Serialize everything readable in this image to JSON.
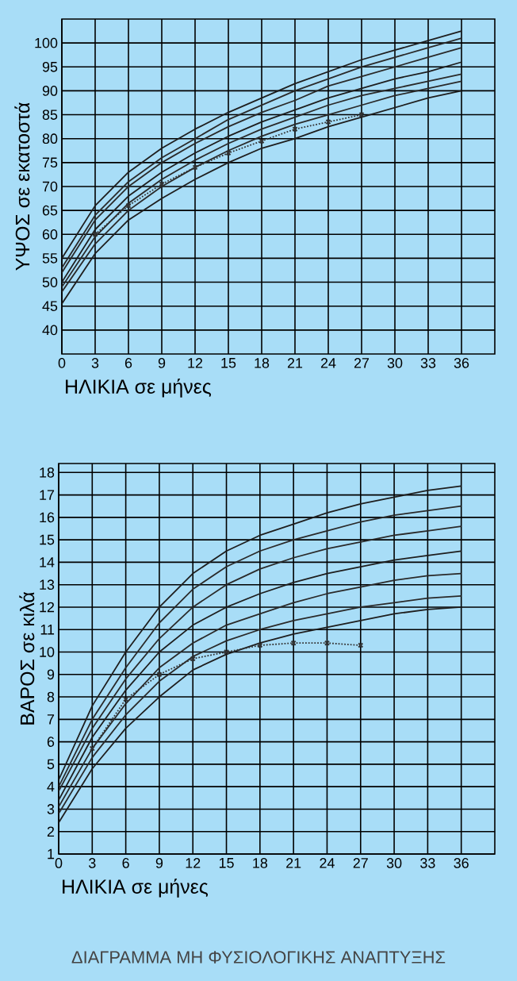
{
  "chart_data": [
    {
      "type": "line",
      "xlabel": "ΗΛΙΚΙΑ σε μήνες",
      "ylabel": "ΥΨΟΣ σε εκατοστά",
      "x": [
        0,
        3,
        6,
        9,
        12,
        15,
        18,
        21,
        24,
        27,
        30,
        33,
        36
      ],
      "xlim": [
        0,
        39
      ],
      "xticks": [
        0,
        3,
        6,
        9,
        12,
        15,
        18,
        21,
        24,
        27,
        30,
        33,
        36
      ],
      "ylim": [
        35,
        105
      ],
      "yticks": [
        40,
        45,
        50,
        55,
        60,
        65,
        70,
        75,
        80,
        85,
        90,
        95,
        100
      ],
      "grid": true,
      "series": [
        {
          "color": "#1e1e1e",
          "values": [
            55,
            66,
            73,
            78,
            82,
            85.5,
            88.5,
            91.5,
            94,
            96.5,
            98.5,
            100.5,
            102.5
          ]
        },
        {
          "color": "#2a2a2a",
          "values": [
            53,
            64,
            71,
            76,
            80,
            84,
            87,
            90,
            92.5,
            95,
            97,
            99,
            101
          ]
        },
        {
          "color": "#2a2a2a",
          "values": [
            52,
            63,
            70,
            75,
            79,
            82.5,
            85.5,
            88,
            91,
            93,
            95,
            97,
            99
          ]
        },
        {
          "color": "#1e1e1e",
          "values": [
            50,
            61,
            68,
            73,
            77,
            80.5,
            83.5,
            86,
            88.5,
            90.5,
            92.5,
            94,
            96
          ]
        },
        {
          "color": "#2a2a2a",
          "values": [
            49,
            59.5,
            66.5,
            71.5,
            75.5,
            79,
            82,
            84.5,
            87,
            89,
            90.5,
            92,
            93.5
          ]
        },
        {
          "color": "#2a2a2a",
          "values": [
            48,
            58,
            65,
            70,
            74,
            77.5,
            80.5,
            83,
            85,
            87,
            89,
            90.5,
            92
          ]
        },
        {
          "color": "#1e1e1e",
          "values": [
            45.5,
            56,
            63,
            67.5,
            71.5,
            75,
            78,
            80,
            82.5,
            84.5,
            86.5,
            88.5,
            90
          ]
        },
        {
          "color": "#333333",
          "x": [
            3,
            6,
            9,
            12,
            15,
            18,
            21,
            24,
            27
          ],
          "values": [
            60,
            66,
            70.5,
            74,
            77,
            79.5,
            82,
            83.5,
            85
          ],
          "line_style": "dotted",
          "marker": "cross"
        }
      ]
    },
    {
      "type": "line",
      "xlabel": "ΗΛΙΚΙΑ σε μήνες",
      "ylabel": "ΒΑΡΟΣ σε κιλά",
      "x": [
        0,
        3,
        6,
        9,
        12,
        15,
        18,
        21,
        24,
        27,
        30,
        33,
        36
      ],
      "xlim": [
        0,
        39
      ],
      "xticks": [
        0,
        3,
        6,
        9,
        12,
        15,
        18,
        21,
        24,
        27,
        30,
        33,
        36
      ],
      "ylim": [
        1,
        18.4
      ],
      "yticks": [
        1,
        2,
        3,
        4,
        5,
        6,
        7,
        8,
        9,
        10,
        11,
        12,
        13,
        14,
        15,
        16,
        17,
        18
      ],
      "grid": true,
      "annotations": [
        "ΔΙΑΓΡΑΜΜΑ ΜΗ ΦΥΣΙΟΛΟΓΙΚΗΣ ΑΝΑΠΤΥΞΗΣ"
      ],
      "series": [
        {
          "color": "#1e1e1e",
          "values": [
            4.3,
            7.6,
            10,
            12,
            13.5,
            14.5,
            15.2,
            15.7,
            16.2,
            16.6,
            16.9,
            17.2,
            17.4
          ]
        },
        {
          "color": "#2a2a2a",
          "values": [
            4,
            7,
            9.3,
            11.3,
            12.8,
            13.8,
            14.5,
            15,
            15.4,
            15.8,
            16.1,
            16.3,
            16.5
          ]
        },
        {
          "color": "#2a2a2a",
          "values": [
            3.8,
            6.6,
            8.8,
            10.6,
            12,
            13,
            13.7,
            14.2,
            14.6,
            14.9,
            15.2,
            15.4,
            15.6
          ]
        },
        {
          "color": "#1e1e1e",
          "values": [
            3.4,
            6.2,
            8.3,
            10,
            11.2,
            12,
            12.6,
            13.1,
            13.5,
            13.8,
            14.1,
            14.3,
            14.5
          ]
        },
        {
          "color": "#2a2a2a",
          "values": [
            3.1,
            5.7,
            7.7,
            9.3,
            10.4,
            11.2,
            11.7,
            12.2,
            12.6,
            12.9,
            13.2,
            13.4,
            13.5
          ]
        },
        {
          "color": "#2a2a2a",
          "values": [
            2.8,
            5.3,
            7.2,
            8.7,
            9.8,
            10.5,
            11,
            11.4,
            11.7,
            12,
            12.2,
            12.4,
            12.5
          ]
        },
        {
          "color": "#1e1e1e",
          "values": [
            2.4,
            4.8,
            6.6,
            8,
            9.2,
            9.9,
            10.4,
            10.8,
            11.1,
            11.4,
            11.7,
            11.9,
            12
          ]
        },
        {
          "color": "#333333",
          "x": [
            3,
            6,
            9,
            12,
            15,
            18,
            21,
            24,
            27
          ],
          "values": [
            5.7,
            7.9,
            9,
            9.7,
            10,
            10.3,
            10.4,
            10.4,
            10.3
          ],
          "line_style": "dotted",
          "marker": "cross"
        }
      ]
    }
  ]
}
